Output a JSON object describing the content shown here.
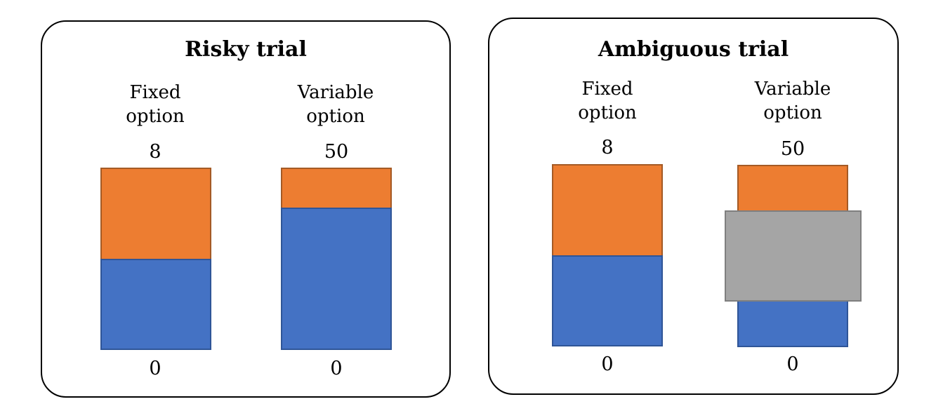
{
  "colors": {
    "win": "#ed7d31",
    "lose": "#4472c4",
    "occluder": "#a5a5a5"
  },
  "panels": [
    {
      "title": "Risky trial",
      "options": [
        {
          "label_lines": [
            "Fixed",
            "option"
          ],
          "top_value": "8",
          "bottom_value": "0",
          "win_fraction": 0.5
        },
        {
          "label_lines": [
            "Variable",
            "option"
          ],
          "top_value": "50",
          "bottom_value": "0",
          "win_fraction": 0.22
        }
      ]
    },
    {
      "title": "Ambiguous trial",
      "options": [
        {
          "label_lines": [
            "Fixed",
            "option"
          ],
          "top_value": "8",
          "bottom_value": "0",
          "win_fraction": 0.5
        },
        {
          "label_lines": [
            "Variable",
            "option"
          ],
          "top_value": "50",
          "bottom_value": "0",
          "win_fraction": 0.25,
          "occluded_fraction": 0.5
        }
      ]
    }
  ]
}
